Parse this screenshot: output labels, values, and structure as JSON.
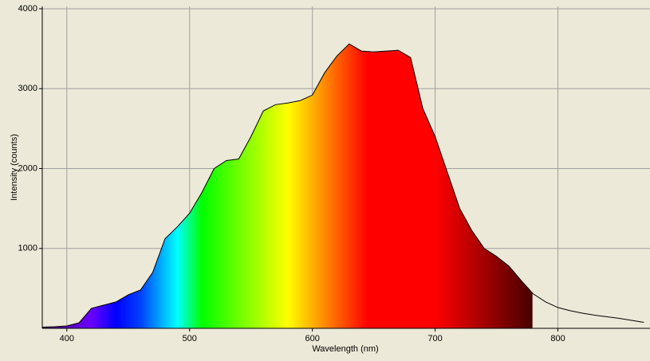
{
  "chart_data": {
    "type": "area",
    "x_label": "Wavelength (nm)",
    "y_label": "Intensity (counts)",
    "x": [
      380,
      390,
      400,
      410,
      420,
      430,
      440,
      450,
      460,
      470,
      480,
      490,
      500,
      510,
      520,
      530,
      540,
      550,
      560,
      570,
      580,
      590,
      600,
      610,
      620,
      630,
      640,
      650,
      660,
      670,
      680,
      690,
      700,
      710,
      720,
      730,
      740,
      750,
      760,
      770,
      780,
      790,
      800,
      810,
      820,
      830,
      840,
      850,
      860,
      870
    ],
    "values": [
      15,
      20,
      30,
      70,
      250,
      290,
      330,
      420,
      480,
      700,
      1120,
      1270,
      1440,
      1700,
      2000,
      2100,
      2120,
      2400,
      2720,
      2800,
      2820,
      2850,
      2920,
      3200,
      3410,
      3560,
      3470,
      3460,
      3470,
      3480,
      3390,
      2750,
      2400,
      1950,
      1500,
      1220,
      1000,
      900,
      780,
      600,
      430,
      330,
      260,
      220,
      190,
      165,
      145,
      125,
      100,
      75
    ],
    "color": "#000000",
    "xlim": [
      380,
      875
    ],
    "xticks": [
      400,
      500,
      600,
      700,
      800
    ],
    "ylim": [
      0,
      4030
    ],
    "yticks": [
      1000,
      2000,
      3000,
      4000
    ],
    "grid": true
  }
}
